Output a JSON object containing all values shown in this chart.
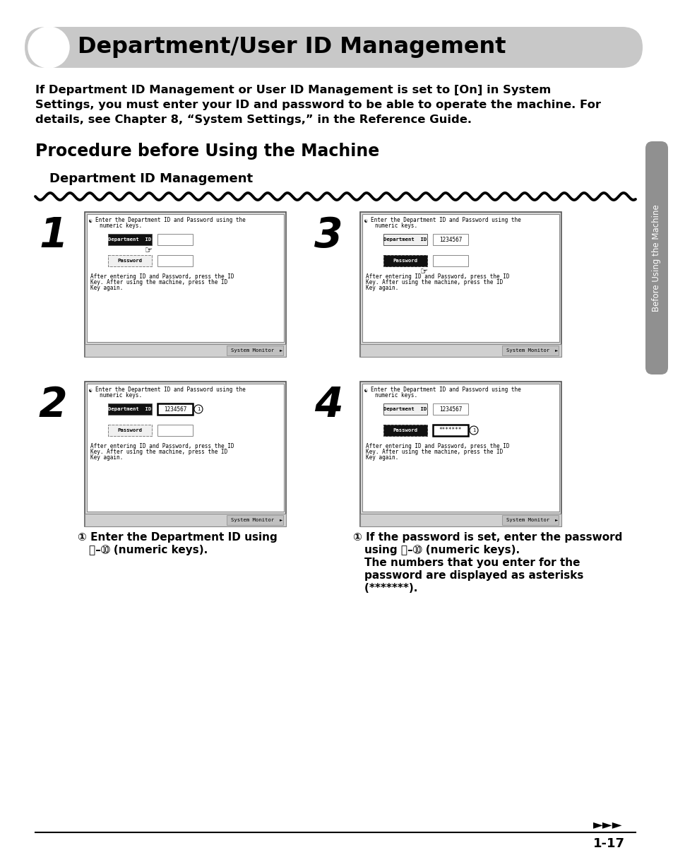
{
  "title": "Department/User ID Management",
  "subtitle_line1": "If Department ID Management or User ID Management is set to [On] in System",
  "subtitle_line2": "Settings, you must enter your ID and password to be able to operate the machine. For",
  "subtitle_line3": "details, see Chapter 8, “System Settings,” in the Reference Guide.",
  "section_title": "Procedure before Using the Machine",
  "subsection_title": "Department ID Management",
  "sidebar_text": "Before Using the Machine",
  "page_number": "1-17",
  "bg_color": "#ffffff",
  "header_bg": "#c8c8c8",
  "label_bg": "#1a1a1a",
  "sidebar_bg": "#909090"
}
